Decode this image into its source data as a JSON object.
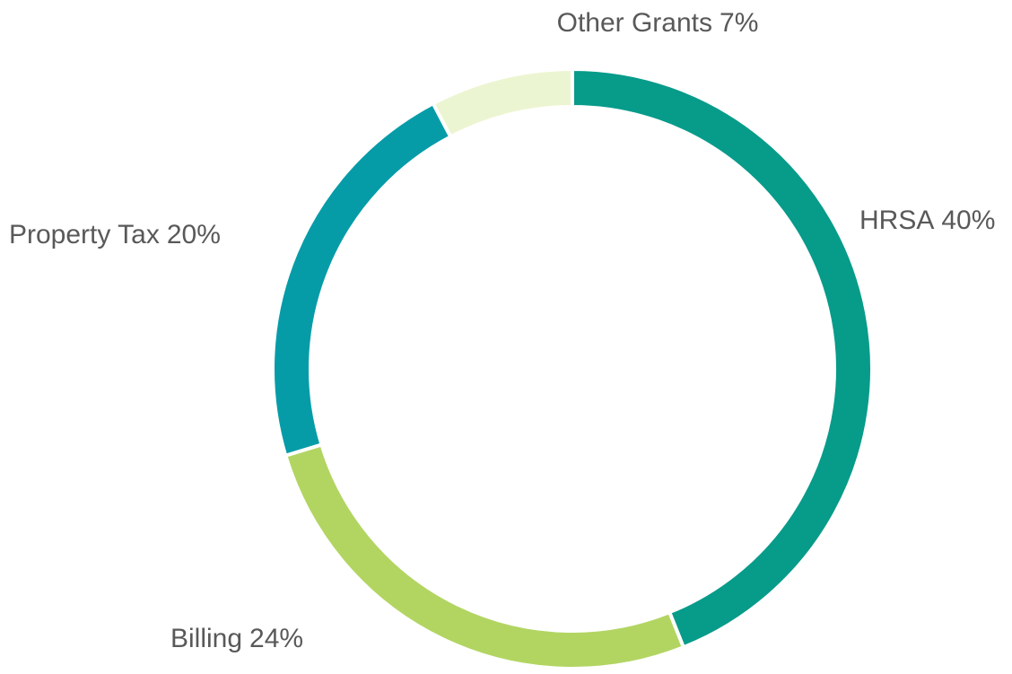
{
  "chart_data": {
    "type": "donut",
    "categories": [
      "HRSA",
      "Billing",
      "Property Tax",
      "Other Grants"
    ],
    "values": [
      40,
      24,
      20,
      7
    ],
    "value_labels": [
      "40%",
      "24%",
      "20%",
      "7%"
    ],
    "colors": [
      "#079b8a",
      "#b2d562",
      "#059ca8",
      "#ecf5d1"
    ]
  }
}
